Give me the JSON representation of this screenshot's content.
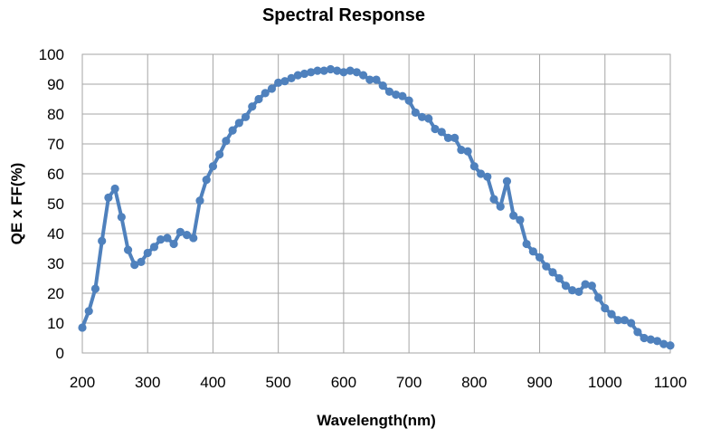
{
  "chart_data": {
    "type": "line",
    "title": "Spectral Response",
    "xlabel": "Wavelength(nm)",
    "ylabel": "QE x FF(%)",
    "xlim": [
      200,
      1100
    ],
    "ylim": [
      0,
      100
    ],
    "x_ticks": [
      200,
      300,
      400,
      500,
      600,
      700,
      800,
      900,
      1000,
      1100
    ],
    "y_ticks": [
      0,
      10,
      20,
      30,
      40,
      50,
      60,
      70,
      80,
      90,
      100
    ],
    "grid": true,
    "legend": "none",
    "series": [
      {
        "color": "#4f81bd",
        "marker": "circle",
        "x": [
          200,
          210,
          220,
          230,
          240,
          250,
          260,
          270,
          280,
          290,
          300,
          310,
          320,
          330,
          340,
          350,
          360,
          370,
          380,
          390,
          400,
          410,
          420,
          430,
          440,
          450,
          460,
          470,
          480,
          490,
          500,
          510,
          520,
          530,
          540,
          550,
          560,
          570,
          580,
          590,
          600,
          610,
          620,
          630,
          640,
          650,
          660,
          670,
          680,
          690,
          700,
          710,
          720,
          730,
          740,
          750,
          760,
          770,
          780,
          790,
          800,
          810,
          820,
          830,
          840,
          850,
          860,
          870,
          880,
          890,
          900,
          910,
          920,
          930,
          940,
          950,
          960,
          970,
          980,
          990,
          1000,
          1010,
          1020,
          1030,
          1040,
          1050,
          1060,
          1070,
          1080,
          1090,
          1100
        ],
        "y": [
          8.5,
          14,
          21.5,
          37.5,
          52,
          55,
          45.5,
          34.5,
          29.5,
          30.5,
          33.5,
          35.5,
          38,
          38.5,
          36.5,
          40.5,
          39.5,
          38.5,
          51,
          58,
          62.5,
          66.5,
          71,
          74.5,
          77,
          79,
          82.5,
          85,
          87,
          88.5,
          90.5,
          91,
          92,
          93,
          93.5,
          94,
          94.5,
          94.5,
          95,
          94.5,
          94,
          94.5,
          94,
          93,
          91.5,
          91.5,
          89.5,
          87.5,
          86.5,
          86,
          84.5,
          80.5,
          79,
          78.5,
          75,
          74,
          72,
          72,
          68,
          67.5,
          62.5,
          60,
          59,
          51.5,
          49,
          57.5,
          46,
          44.5,
          36.5,
          34,
          32,
          29,
          27,
          25,
          22.5,
          21,
          20.5,
          23,
          22.5,
          18.5,
          15,
          13,
          11,
          11,
          10,
          7,
          5,
          4.5,
          4,
          3,
          2.5
        ]
      }
    ]
  }
}
